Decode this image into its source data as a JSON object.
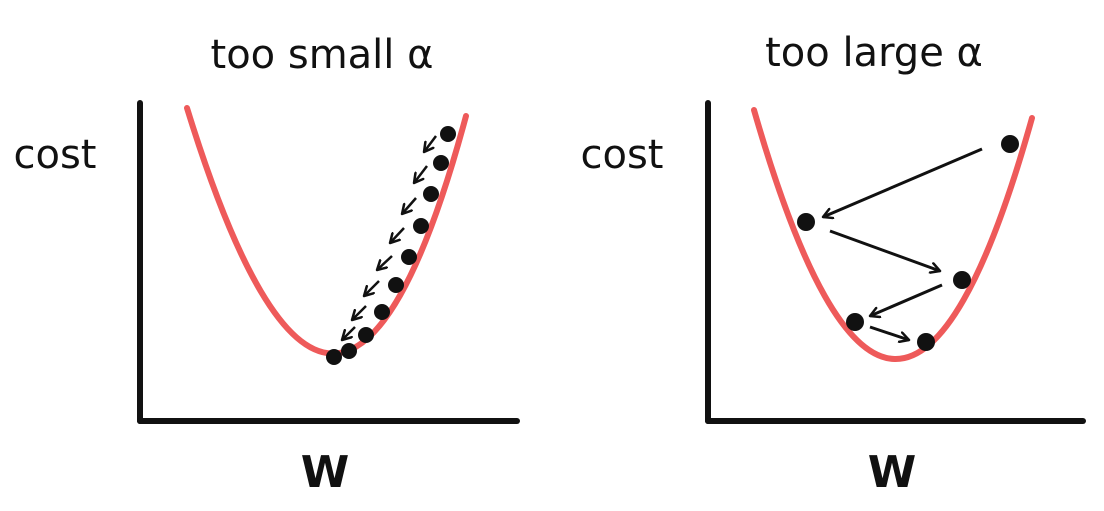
{
  "colors": {
    "curve": "#ee5a5a",
    "ink": "#111111",
    "background": "#ffffff"
  },
  "panels": [
    {
      "title": "too small α",
      "ylabel": "cost",
      "xlabel": "W",
      "steps": 8
    },
    {
      "title": "too large α",
      "ylabel": "cost",
      "xlabel": "W",
      "steps": 5
    }
  ]
}
